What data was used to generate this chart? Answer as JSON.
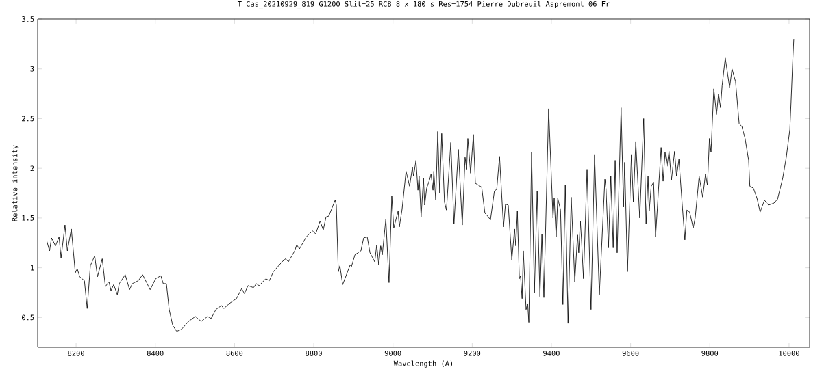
{
  "chart_data": {
    "type": "line",
    "title": "T Cas_20210929_819  G1200 Slit=25  RC8  8 x 180 s   Res=1754   Pierre Dubreuil Aspremont 06 Fr",
    "xlabel": "Wavelength (A)",
    "ylabel": "Relative intensity",
    "xlim": [
      8103,
      10052
    ],
    "ylim": [
      0.2,
      3.5
    ],
    "xticks": [
      8200,
      8400,
      8600,
      8800,
      9000,
      9200,
      9400,
      9600,
      9800,
      10000
    ],
    "yticks": [
      0.5,
      1,
      1.5,
      2,
      2.5,
      3,
      3.5
    ],
    "grid": false,
    "series": [
      {
        "color": "#000000",
        "x": [
          8126,
          8133,
          8138,
          8148,
          8157,
          8162,
          8172,
          8178,
          8188,
          8198,
          8203,
          8209,
          8221,
          8228,
          8236,
          8247,
          8254,
          8266,
          8274,
          8283,
          8288,
          8295,
          8304,
          8309,
          8324,
          8335,
          8342,
          8357,
          8368,
          8387,
          8401,
          8414,
          8420,
          8428,
          8435,
          8444,
          8454,
          8466,
          8484,
          8501,
          8516,
          8532,
          8541,
          8553,
          8567,
          8573,
          8587,
          8605,
          8618,
          8625,
          8634,
          8648,
          8655,
          8662,
          8679,
          8688,
          8698,
          8720,
          8729,
          8736,
          8752,
          8757,
          8764,
          8781,
          8797,
          8805,
          8816,
          8824,
          8831,
          8838,
          8854,
          8857,
          8862,
          8866,
          8873,
          8892,
          8895,
          8904,
          8919,
          8926,
          8935,
          8942,
          8954,
          8959,
          8964,
          8969,
          8973,
          8982,
          8990,
          8997,
          9002,
          9013,
          9016,
          9023,
          9033,
          9042,
          9049,
          9052,
          9058,
          9063,
          9066,
          9071,
          9077,
          9080,
          9085,
          9092,
          9096,
          9101,
          9103,
          9108,
          9113,
          9118,
          9123,
          9130,
          9135,
          9146,
          9154,
          9165,
          9175,
          9182,
          9186,
          9189,
          9196,
          9203,
          9208,
          9224,
          9232,
          9241,
          9246,
          9256,
          9262,
          9269,
          9279,
          9284,
          9291,
          9300,
          9307,
          9310,
          9314,
          9319,
          9322,
          9326,
          9329,
          9336,
          9340,
          9343,
          9350,
          9357,
          9364,
          9371,
          9376,
          9381,
          9393,
          9404,
          9407,
          9412,
          9416,
          9423,
          9429,
          9435,
          9442,
          9450,
          9459,
          9466,
          9469,
          9473,
          9476,
          9481,
          9490,
          9500,
          9509,
          9521,
          9535,
          9538,
          9544,
          9550,
          9556,
          9561,
          9566,
          9576,
          9582,
          9585,
          9592,
          9602,
          9607,
          9613,
          9623,
          9633,
          9639,
          9644,
          9647,
          9652,
          9658,
          9663,
          9677,
          9682,
          9687,
          9692,
          9697,
          9703,
          9711,
          9716,
          9722,
          9730,
          9737,
          9742,
          9749,
          9758,
          9763,
          9773,
          9782,
          9789,
          9794,
          9799,
          9803,
          9810,
          9817,
          9822,
          9827,
          9831,
          9839,
          9850,
          9856,
          9865,
          9874,
          9881,
          9889,
          9898,
          9901,
          9910,
          9919,
          9927,
          9938,
          9948,
          9962,
          9971,
          9984,
          9993,
          10002,
          10005,
          10009,
          10012
        ],
        "values": [
          1.27,
          1.17,
          1.3,
          1.22,
          1.31,
          1.1,
          1.43,
          1.17,
          1.39,
          0.95,
          0.99,
          0.91,
          0.87,
          0.59,
          1.02,
          1.12,
          0.91,
          1.09,
          0.81,
          0.86,
          0.77,
          0.83,
          0.73,
          0.84,
          0.93,
          0.78,
          0.84,
          0.87,
          0.93,
          0.78,
          0.89,
          0.92,
          0.84,
          0.84,
          0.58,
          0.42,
          0.36,
          0.38,
          0.46,
          0.51,
          0.46,
          0.51,
          0.49,
          0.58,
          0.62,
          0.59,
          0.64,
          0.69,
          0.79,
          0.74,
          0.82,
          0.8,
          0.84,
          0.82,
          0.89,
          0.87,
          0.96,
          1.06,
          1.09,
          1.06,
          1.17,
          1.23,
          1.19,
          1.31,
          1.37,
          1.34,
          1.47,
          1.38,
          1.51,
          1.52,
          1.68,
          1.63,
          0.96,
          1.02,
          0.83,
          1.03,
          1.01,
          1.13,
          1.17,
          1.3,
          1.31,
          1.15,
          1.06,
          1.23,
          1.03,
          1.22,
          1.13,
          1.49,
          0.85,
          1.72,
          1.4,
          1.57,
          1.41,
          1.59,
          1.97,
          1.82,
          2.01,
          1.92,
          2.08,
          1.78,
          1.92,
          1.51,
          1.9,
          1.63,
          1.8,
          1.88,
          1.94,
          1.78,
          1.97,
          1.68,
          2.37,
          1.75,
          2.35,
          1.66,
          1.58,
          2.26,
          1.44,
          2.19,
          1.43,
          2.11,
          1.99,
          2.3,
          1.95,
          2.34,
          1.85,
          1.81,
          1.55,
          1.51,
          1.48,
          1.77,
          1.79,
          2.12,
          1.41,
          1.64,
          1.63,
          1.08,
          1.39,
          1.22,
          1.57,
          0.89,
          0.92,
          0.69,
          1.17,
          0.58,
          0.64,
          0.45,
          2.16,
          0.75,
          1.77,
          0.71,
          1.34,
          0.7,
          2.6,
          1.5,
          1.7,
          1.31,
          1.7,
          1.58,
          0.63,
          1.83,
          0.44,
          1.71,
          0.86,
          1.33,
          1.15,
          1.47,
          1.28,
          0.89,
          1.99,
          0.58,
          2.14,
          0.73,
          1.89,
          1.79,
          1.2,
          1.92,
          1.2,
          2.08,
          1.15,
          2.61,
          1.61,
          2.06,
          0.96,
          2.14,
          1.66,
          2.27,
          1.5,
          2.5,
          1.44,
          1.92,
          1.57,
          1.82,
          1.86,
          1.31,
          2.21,
          1.87,
          2.16,
          2.02,
          2.17,
          1.88,
          2.17,
          1.92,
          2.09,
          1.65,
          1.28,
          1.58,
          1.56,
          1.4,
          1.5,
          1.92,
          1.71,
          1.94,
          1.83,
          2.3,
          2.16,
          2.8,
          2.54,
          2.75,
          2.61,
          2.83,
          3.11,
          2.81,
          3.0,
          2.87,
          2.45,
          2.42,
          2.3,
          2.08,
          1.82,
          1.8,
          1.7,
          1.56,
          1.68,
          1.63,
          1.65,
          1.69,
          1.9,
          2.11,
          2.39,
          2.66,
          3.05,
          3.3
        ]
      }
    ]
  }
}
